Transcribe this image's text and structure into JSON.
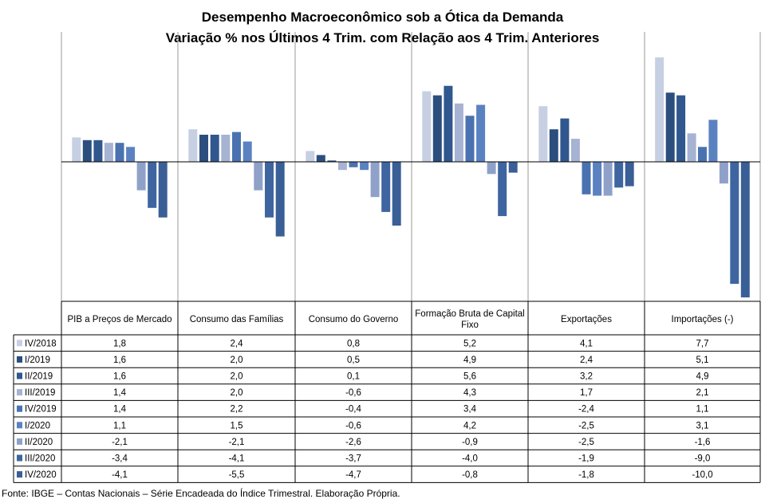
{
  "header": {
    "title_line1": "Desempenho Macroeconômico  sob a Ótica da Demanda",
    "title_line2": "Variação  % nos  Últimos 4 Trim.  com Relação aos  4 Trim.  Anteriores"
  },
  "footer": {
    "source": "Fonte: IBGE – Contas Nacionais – Série Encadeada do Índice Trimestral. Elaboração Própria."
  },
  "chart_data": {
    "type": "bar",
    "categories": [
      "PIB a Preços de Mercado",
      "Consumo das Famílias",
      "Consumo do Governo",
      "Formação Bruta de Capital Fixo",
      "Exportações",
      "Importações (-)"
    ],
    "category_lines": [
      [
        "PIB a Preços de Mercado"
      ],
      [
        "Consumo das Famílias"
      ],
      [
        "Consumo do Governo"
      ],
      [
        "Formação Bruta de Capital",
        "Fixo"
      ],
      [
        "Exportações"
      ],
      [
        "Importações (-)"
      ]
    ],
    "series": [
      {
        "name": "IV/2018",
        "color": "#c6d0e2",
        "values": [
          1.8,
          2.4,
          0.8,
          5.2,
          4.1,
          7.7
        ],
        "labels": [
          "1,8",
          "2,4",
          "0,8",
          "5,2",
          "4,1",
          "7,7"
        ]
      },
      {
        "name": "I/2019",
        "color": "#2b4e7e",
        "values": [
          1.6,
          2.0,
          0.5,
          4.9,
          2.4,
          5.1
        ],
        "labels": [
          "1,6",
          "2,0",
          "0,5",
          "4,9",
          "2,4",
          "5,1"
        ]
      },
      {
        "name": "II/2019",
        "color": "#30578e",
        "values": [
          1.6,
          2.0,
          0.1,
          5.6,
          3.2,
          4.9
        ],
        "labels": [
          "1,6",
          "2,0",
          "0,1",
          "5,6",
          "3,2",
          "4,9"
        ]
      },
      {
        "name": "III/2019",
        "color": "#a6b3d2",
        "values": [
          1.4,
          2.0,
          -0.6,
          4.3,
          1.7,
          2.1
        ],
        "labels": [
          "1,4",
          "2,0",
          "-0,6",
          "4,3",
          "1,7",
          "2,1"
        ]
      },
      {
        "name": "IV/2019",
        "color": "#4a72b0",
        "values": [
          1.4,
          2.2,
          -0.4,
          3.4,
          -2.4,
          1.1
        ],
        "labels": [
          "1,4",
          "2,2",
          "-0,4",
          "3,4",
          "-2,4",
          "1,1"
        ]
      },
      {
        "name": "I/2020",
        "color": "#5a82c0",
        "values": [
          1.1,
          1.5,
          -0.6,
          4.2,
          -2.5,
          3.1
        ],
        "labels": [
          "1,1",
          "1,5",
          "-0,6",
          "4,2",
          "-2,5",
          "3,1"
        ]
      },
      {
        "name": "II/2020",
        "color": "#8fa1c9",
        "values": [
          -2.1,
          -2.1,
          -2.6,
          -0.9,
          -2.5,
          -1.6
        ],
        "labels": [
          "-2,1",
          "-2,1",
          "-2,6",
          "-0,9",
          "-2,5",
          "-1,6"
        ]
      },
      {
        "name": "III/2020",
        "color": "#3e65a0",
        "values": [
          -3.4,
          -4.1,
          -3.7,
          -4.0,
          -1.9,
          -9.0
        ],
        "labels": [
          "-3,4",
          "-4,1",
          "-3,7",
          "-4,0",
          "-1,9",
          "-9,0"
        ]
      },
      {
        "name": "IV/2020",
        "color": "#3a5f97",
        "values": [
          -4.1,
          -5.5,
          -4.7,
          -0.8,
          -1.8,
          -10.0
        ],
        "labels": [
          "-4,1",
          "-5,5",
          "-4,7",
          "-0,8",
          "-1,8",
          "-10,0"
        ]
      }
    ],
    "ylim": [
      -10.0,
      7.7
    ],
    "legend_placement": "table-left",
    "grid": false
  }
}
